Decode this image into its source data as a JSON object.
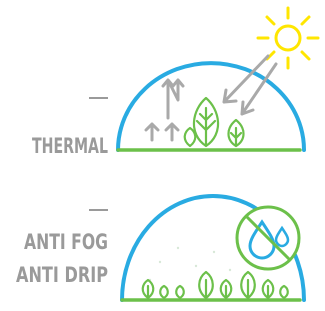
{
  "sections": [
    {
      "lines": [
        "THERMAL"
      ]
    },
    {
      "lines": [
        "ANTI FOG",
        "ANTI DRIP"
      ]
    }
  ]
}
